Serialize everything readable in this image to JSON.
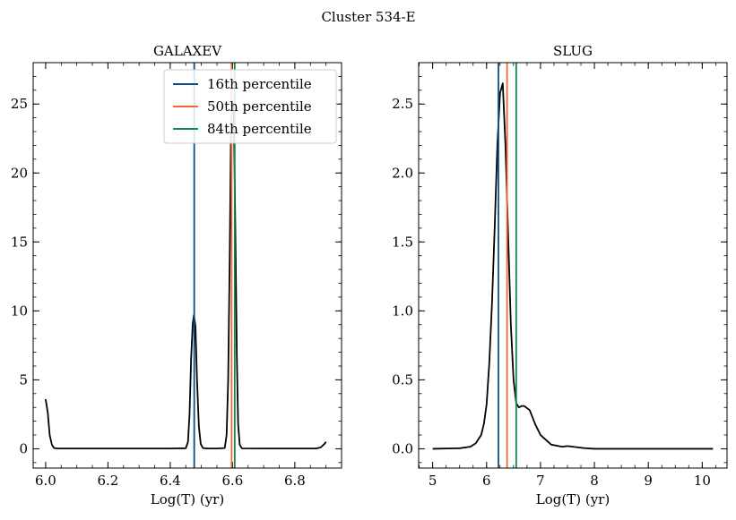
{
  "figure": {
    "suptitle": "Cluster 534-E"
  },
  "chart_data": [
    {
      "type": "line",
      "title": "GALAXEV",
      "xlabel": "Log(T) (yr)",
      "ylabel": "",
      "xlim": [
        5.96,
        6.95
      ],
      "ylim": [
        -1.4,
        28.0
      ],
      "xticks": [
        6.0,
        6.2,
        6.4,
        6.6,
        6.8
      ],
      "xtick_labels": [
        "6.0",
        "6.2",
        "6.4",
        "6.6",
        "6.8"
      ],
      "yticks": [
        0,
        5,
        10,
        15,
        20,
        25
      ],
      "ytick_labels": [
        "0",
        "5",
        "10",
        "15",
        "20",
        "25"
      ],
      "x_minor_step": 0.05,
      "y_minor_step": 1,
      "series": [
        {
          "name": "",
          "color": "#000000",
          "x": [
            6.0,
            6.007,
            6.013,
            6.02,
            6.027,
            6.04,
            6.1,
            6.2,
            6.3,
            6.4,
            6.45,
            6.457,
            6.462,
            6.467,
            6.472,
            6.476,
            6.481,
            6.486,
            6.492,
            6.498,
            6.505,
            6.52,
            6.55,
            6.575,
            6.581,
            6.586,
            6.591,
            6.595,
            6.598,
            6.6,
            6.604,
            6.609,
            6.614,
            6.618,
            6.623,
            6.63,
            6.7,
            6.8,
            6.868,
            6.883,
            6.895,
            6.9
          ],
          "y": [
            3.6,
            2.6,
            1.0,
            0.3,
            0.05,
            0.02,
            0.02,
            0.02,
            0.02,
            0.02,
            0.04,
            0.5,
            2.5,
            6.5,
            9.0,
            9.7,
            8.9,
            5.0,
            1.6,
            0.35,
            0.05,
            0.02,
            0.02,
            0.05,
            1.0,
            5.0,
            14.0,
            23.0,
            25.0,
            25.2,
            24.5,
            16.0,
            6.5,
            1.8,
            0.3,
            0.03,
            0.02,
            0.02,
            0.02,
            0.1,
            0.35,
            0.5
          ]
        }
      ],
      "vlines": [
        {
          "label": "16th percentile",
          "x": 6.477,
          "color": "#0a4d8c"
        },
        {
          "label": "50th percentile",
          "x": 6.597,
          "color": "#f4663a"
        },
        {
          "label": "84th percentile",
          "x": 6.607,
          "color": "#0f8a4e"
        }
      ],
      "legend": "top-right"
    },
    {
      "type": "line",
      "title": "SLUG",
      "xlabel": "Log(T) (yr)",
      "ylabel": "",
      "xlim": [
        4.74,
        10.46
      ],
      "ylim": [
        -0.14,
        2.8
      ],
      "xticks": [
        5,
        6,
        7,
        8,
        9,
        10
      ],
      "xtick_labels": [
        "5",
        "6",
        "7",
        "8",
        "9",
        "10"
      ],
      "yticks": [
        0.0,
        0.5,
        1.0,
        1.5,
        2.0,
        2.5
      ],
      "ytick_labels": [
        "0.0",
        "0.5",
        "1.0",
        "1.5",
        "2.0",
        "2.5"
      ],
      "x_minor_step": 0.25,
      "y_minor_step": 0.1,
      "series": [
        {
          "name": "",
          "color": "#000000",
          "x": [
            5.0,
            5.5,
            5.7,
            5.8,
            5.9,
            5.95,
            6.0,
            6.05,
            6.1,
            6.15,
            6.2,
            6.25,
            6.3,
            6.35,
            6.4,
            6.45,
            6.5,
            6.55,
            6.6,
            6.65,
            6.7,
            6.8,
            6.9,
            7.0,
            7.2,
            7.4,
            7.5,
            7.6,
            7.8,
            8.0,
            9.0,
            10.0,
            10.2
          ],
          "y": [
            0.0,
            0.004,
            0.015,
            0.04,
            0.1,
            0.18,
            0.32,
            0.62,
            1.05,
            1.6,
            2.2,
            2.58,
            2.65,
            2.2,
            1.55,
            0.9,
            0.5,
            0.33,
            0.3,
            0.31,
            0.31,
            0.28,
            0.18,
            0.1,
            0.03,
            0.015,
            0.02,
            0.015,
            0.005,
            0.0,
            0.0,
            0.0,
            0.0
          ]
        }
      ],
      "vlines": [
        {
          "label": "16th percentile",
          "x": 6.22,
          "color": "#0a4d8c"
        },
        {
          "label": "50th percentile",
          "x": 6.38,
          "color": "#f4663a"
        },
        {
          "label": "84th percentile",
          "x": 6.55,
          "color": "#0f8a4e"
        }
      ],
      "legend": "none"
    }
  ]
}
